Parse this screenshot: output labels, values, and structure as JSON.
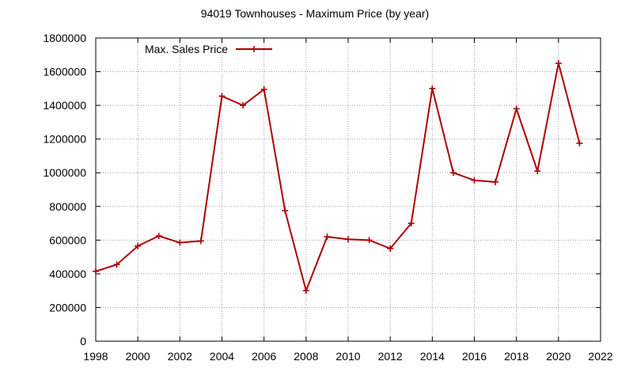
{
  "chart_data": {
    "type": "line",
    "title": "94019 Townhouses - Maximum Price (by year)",
    "xlabel": "",
    "ylabel": "",
    "xlim": [
      1998,
      2022
    ],
    "ylim": [
      0,
      1800000
    ],
    "xticks": [
      "1998",
      "2000",
      "2002",
      "2004",
      "2006",
      "2008",
      "2010",
      "2012",
      "2014",
      "2016",
      "2018",
      "2020",
      "2022"
    ],
    "yticks": [
      "0",
      "200000",
      "400000",
      "600000",
      "800000",
      "1000000",
      "1200000",
      "1400000",
      "1600000",
      "1800000"
    ],
    "grid": true,
    "legend_position": "top-left",
    "series": [
      {
        "name": "Max. Sales Price",
        "color": "#b00000",
        "x": [
          1998,
          1999,
          2000,
          2001,
          2002,
          2003,
          2004,
          2005,
          2006,
          2007,
          2008,
          2009,
          2010,
          2011,
          2012,
          2013,
          2014,
          2015,
          2016,
          2017,
          2018,
          2019,
          2020,
          2021
        ],
        "y": [
          415000,
          455000,
          565000,
          625000,
          585000,
          595000,
          1455000,
          1400000,
          1495000,
          775000,
          300000,
          620000,
          605000,
          600000,
          550000,
          700000,
          1500000,
          1000000,
          955000,
          945000,
          1380000,
          1010000,
          1650000,
          1175000
        ]
      }
    ]
  }
}
